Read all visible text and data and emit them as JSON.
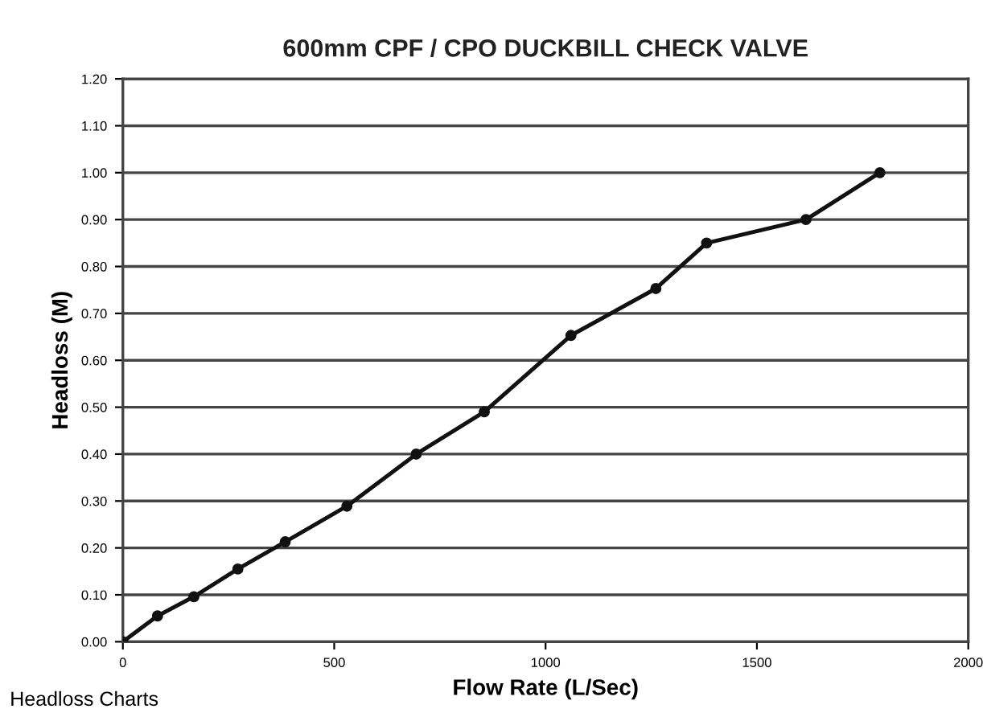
{
  "chart_data": {
    "type": "line",
    "title": "600mm CPF / CPO DUCKBILL CHECK VALVE",
    "xlabel": "Flow Rate (L/Sec)",
    "ylabel": "Headloss (M)",
    "x": [
      0,
      82,
      168,
      272,
      384,
      530,
      694,
      855,
      1060,
      1261,
      1381,
      1616,
      1791
    ],
    "series": [
      {
        "color": "#111111",
        "values": [
          0,
          0.055,
          0.096,
          0.155,
          0.213,
          0.289,
          0.4,
          0.49,
          0.653,
          0.753,
          0.85,
          0.9,
          1.0
        ]
      }
    ],
    "xlim": [
      0,
      2000
    ],
    "xticks": [
      0,
      500,
      1000,
      1500,
      2000
    ],
    "ylim": [
      0,
      1.2
    ],
    "yticks": [
      {
        "value": 0,
        "label": "0.00"
      },
      {
        "value": 0.1,
        "label": "0.10"
      },
      {
        "value": 0.2,
        "label": "0.20"
      },
      {
        "value": 0.3,
        "label": "0.30"
      },
      {
        "value": 0.4,
        "label": "0.40"
      },
      {
        "value": 0.5,
        "label": "0.50"
      },
      {
        "value": 0.6,
        "label": "0.60"
      },
      {
        "value": 0.7,
        "label": "0.70"
      },
      {
        "value": 0.8,
        "label": "0.80"
      },
      {
        "value": 0.9,
        "label": "0.90"
      },
      {
        "value": 1.0,
        "label": "1.00"
      },
      {
        "value": 1.1,
        "label": "1.10"
      },
      {
        "value": 1.2,
        "label": "1.20"
      }
    ],
    "grid": "y",
    "marker": "circle",
    "line_style": "solid",
    "annotations": [
      "Headloss Charts"
    ]
  }
}
